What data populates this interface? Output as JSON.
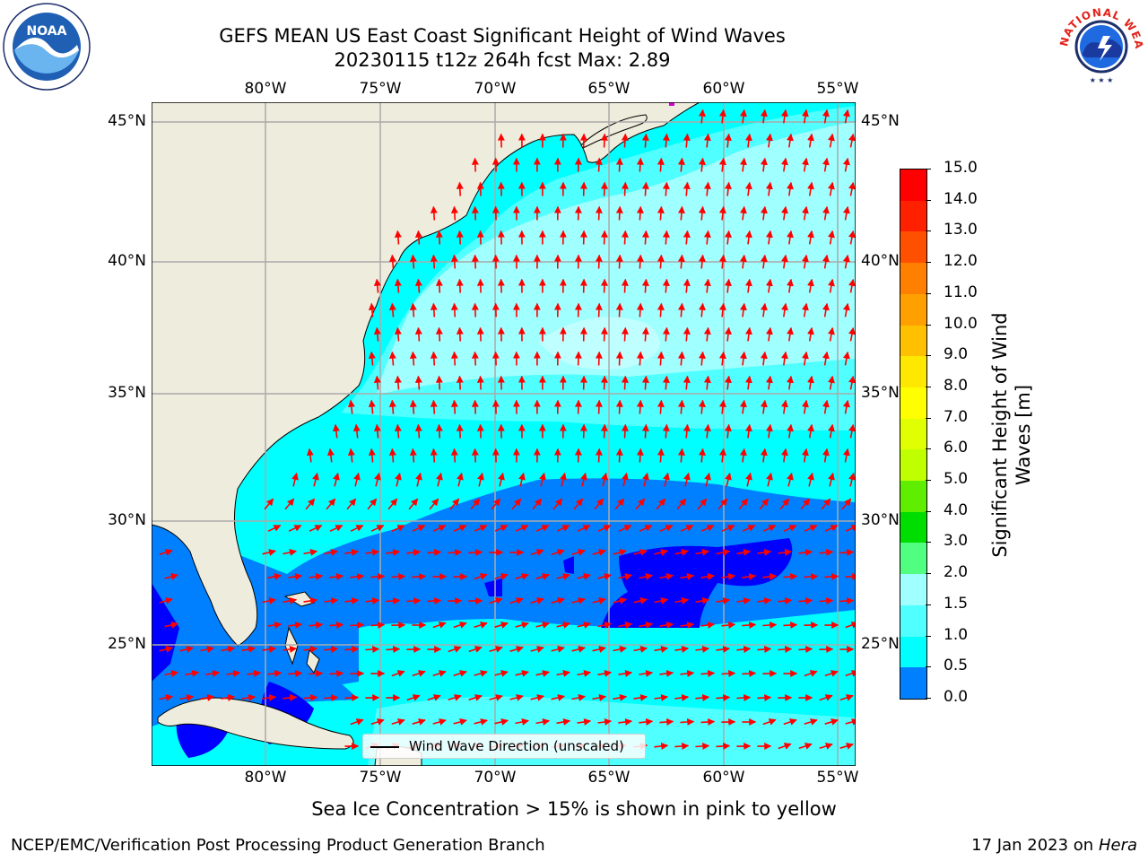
{
  "title": {
    "line1": "GEFS MEAN US East Coast Significant Height of Wind Waves",
    "line2": "20230115 t12z 264h fcst   Max: 2.89"
  },
  "logos": {
    "left": {
      "icon": "noaa-logo",
      "text": "NOAA"
    },
    "right": {
      "icon": "nws-logo",
      "text": "NATIONAL WEATHER SERVICE"
    }
  },
  "map": {
    "lon_ticks": [
      "80°W",
      "75°W",
      "70°W",
      "65°W",
      "60°W",
      "55°W"
    ],
    "lat_ticks": [
      "45°N",
      "40°N",
      "35°N",
      "30°N",
      "25°N"
    ],
    "legend_label": "Wind Wave Direction (unscaled)",
    "colors": {
      "land": "#eeecdc",
      "band_0_0_5": "#0000ff",
      "band_0_5_1_0": "#0080ff",
      "band_1_0_1_5": "#00ffff",
      "band_1_5_2_0": "#50ffff",
      "band_2_0_3_0": "#a0ffff",
      "arrows": "#ff0000",
      "grid": "#aaaaaa"
    }
  },
  "colorbar": {
    "label": "Significant Height of Wind Waves [m]",
    "ticks": [
      "15.0",
      "14.0",
      "13.0",
      "12.0",
      "11.0",
      "10.0",
      "9.0",
      "8.0",
      "7.0",
      "6.0",
      "5.0",
      "4.0",
      "3.0",
      "2.0",
      "1.5",
      "1.0",
      "0.5",
      "0.0"
    ],
    "colors": [
      "#ff0000",
      "#ff2000",
      "#ff5000",
      "#ff8000",
      "#ffa000",
      "#ffc000",
      "#ffe800",
      "#ffff00",
      "#e0ff00",
      "#c0ff00",
      "#60ee00",
      "#00dd00",
      "#50ff80",
      "#a0ffff",
      "#50ffff",
      "#00ffff",
      "#0080ff",
      "#0000ff"
    ]
  },
  "footer": {
    "note": "Sea Ice Concentration > 15% is shown in pink to yellow",
    "left": "NCEP/EMC/Verification Post Processing Product Generation Branch",
    "right_prefix": "17 Jan 2023 on ",
    "right_host": "Hera"
  }
}
